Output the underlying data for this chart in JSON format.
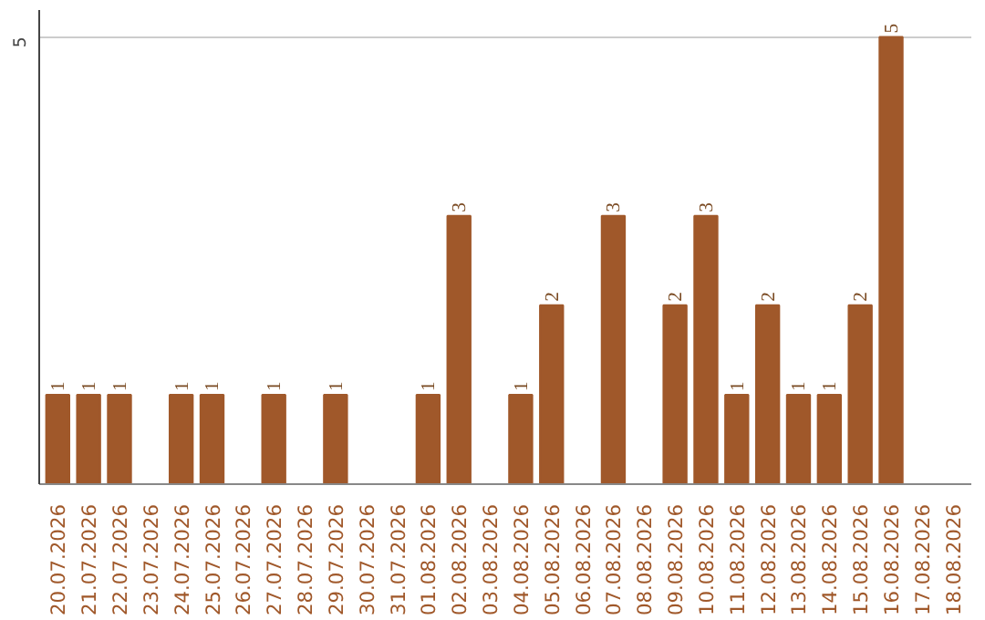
{
  "chart_data": {
    "type": "bar",
    "categories": [
      "20.07.2026",
      "21.07.2026",
      "22.07.2026",
      "23.07.2026",
      "24.07.2026",
      "25.07.2026",
      "26.07.2026",
      "27.07.2026",
      "28.07.2026",
      "29.07.2026",
      "30.07.2026",
      "31.07.2026",
      "01.08.2026",
      "02.08.2026",
      "03.08.2026",
      "04.08.2026",
      "05.08.2026",
      "06.08.2026",
      "07.08.2026",
      "08.08.2026",
      "09.08.2026",
      "10.08.2026",
      "11.08.2026",
      "12.08.2026",
      "13.08.2026",
      "14.08.2026",
      "15.08.2026",
      "16.08.2026",
      "17.08.2026",
      "18.08.2026"
    ],
    "values": [
      1,
      1,
      1,
      null,
      1,
      1,
      null,
      1,
      null,
      1,
      null,
      null,
      1,
      3,
      null,
      1,
      2,
      null,
      3,
      null,
      2,
      3,
      1,
      2,
      1,
      1,
      2,
      5,
      null,
      null
    ],
    "color": "#a0582a",
    "ylim": [
      0,
      5.3
    ],
    "yticks": [
      5
    ],
    "grid": "y",
    "data_labels": true
  }
}
